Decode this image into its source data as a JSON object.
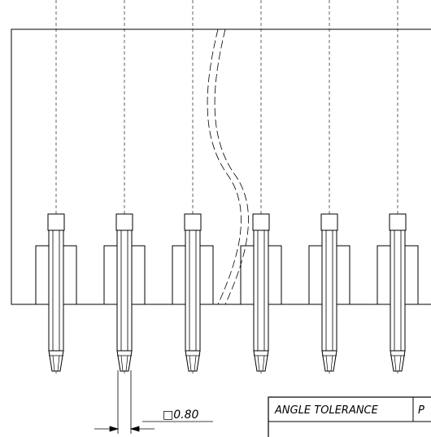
{
  "pin_dimension": {
    "symbol": "□",
    "value": "0.80"
  },
  "title_block": {
    "cells": [
      {
        "text": "ANGLE TOLERANCE"
      },
      {
        "text": "P"
      }
    ]
  },
  "drawing": {
    "pin_count_visible": 6,
    "line_color": "#000000",
    "background_color": "#ffffff"
  }
}
